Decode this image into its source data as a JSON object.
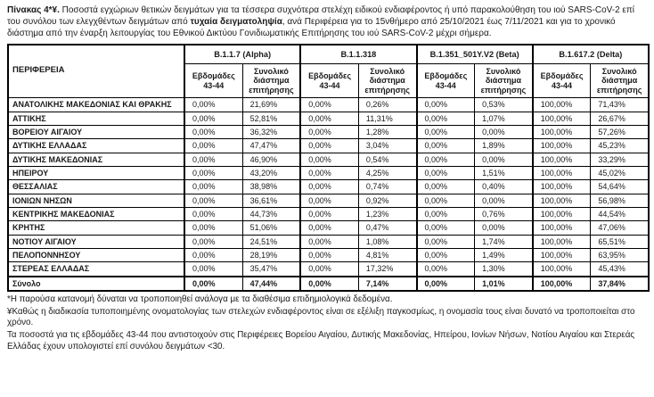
{
  "title": {
    "prefix": "Πίνακας 4*¥.",
    "text1": " Ποσοστά εγχώριων θετικών δειγμάτων για τα τέσσερα συχνότερα στελέχη ειδικού ενδιαφέροντος ή υπό παρακολούθηση του ιού SARS-CoV-2 επί του συνόλου των ελεγχθέντων δειγμάτων από ",
    "bold_phrase": "τυχαία δειγματοληψία",
    "text2": ", ανά Περιφέρεια για το 15νθήμερο από 25/10/2021 έως 7/11/2021 και για το χρονικό διάστημα από την έναρξη λειτουργίας του Εθνικού Δικτύου Γονιδιωματικής Επιτήρησης του ιού SARS-CoV-2 μέχρι σήμερα."
  },
  "table": {
    "region_header": "ΠΕΡΙΦΕΡΕΙΑ",
    "variant_groups": [
      "B.1.1.7 (Alpha)",
      "B.1.1.318",
      "B.1.351_501Y.V2 (Beta)",
      "B.1.617.2 (Delta)"
    ],
    "subheaders": [
      "Εβδομάδες 43-44",
      "Συνολικό διάστημα επιτήρησης"
    ],
    "rows": [
      {
        "region": "ΑΝΑΤΟΛΙΚΗΣ ΜΑΚΕΔΟΝΙΑΣ ΚΑΙ ΘΡΑΚΗΣ",
        "values": [
          "0,00%",
          "21,69%",
          "0,00%",
          "0,26%",
          "0,00%",
          "0,53%",
          "100,00%",
          "71,43%"
        ]
      },
      {
        "region": "ΑΤΤΙΚΗΣ",
        "values": [
          "0,00%",
          "52,81%",
          "0,00%",
          "11,31%",
          "0,00%",
          "1,07%",
          "100,00%",
          "26,67%"
        ]
      },
      {
        "region": "ΒΟΡΕΙΟΥ ΑΙΓΑΙΟΥ",
        "values": [
          "0,00%",
          "36,32%",
          "0,00%",
          "1,28%",
          "0,00%",
          "0,00%",
          "100,00%",
          "57,26%"
        ]
      },
      {
        "region": "ΔΥΤΙΚΗΣ ΕΛΛΑΔΑΣ",
        "values": [
          "0,00%",
          "47,47%",
          "0,00%",
          "3,04%",
          "0,00%",
          "1,89%",
          "100,00%",
          "45,23%"
        ]
      },
      {
        "region": "ΔΥΤΙΚΗΣ ΜΑΚΕΔΟΝΙΑΣ",
        "values": [
          "0,00%",
          "46,90%",
          "0,00%",
          "0,54%",
          "0,00%",
          "0,00%",
          "100,00%",
          "33,29%"
        ]
      },
      {
        "region": "ΗΠΕΙΡΟΥ",
        "values": [
          "0,00%",
          "43,20%",
          "0,00%",
          "4,25%",
          "0,00%",
          "1,51%",
          "100,00%",
          "45,02%"
        ]
      },
      {
        "region": "ΘΕΣΣΑΛΙΑΣ",
        "values": [
          "0,00%",
          "38,98%",
          "0,00%",
          "0,74%",
          "0,00%",
          "0,40%",
          "100,00%",
          "54,64%"
        ]
      },
      {
        "region": "ΙΟΝΙΩΝ ΝΗΣΩΝ",
        "values": [
          "0,00%",
          "36,61%",
          "0,00%",
          "0,92%",
          "0,00%",
          "0,00%",
          "100,00%",
          "56,98%"
        ]
      },
      {
        "region": "ΚΕΝΤΡΙΚΗΣ ΜΑΚΕΔΟΝΙΑΣ",
        "values": [
          "0,00%",
          "44,73%",
          "0,00%",
          "1,23%",
          "0,00%",
          "0,76%",
          "100,00%",
          "44,54%"
        ]
      },
      {
        "region": "ΚΡΗΤΗΣ",
        "values": [
          "0,00%",
          "51,06%",
          "0,00%",
          "0,47%",
          "0,00%",
          "0,00%",
          "100,00%",
          "47,06%"
        ]
      },
      {
        "region": "ΝΟΤΙΟΥ ΑΙΓΑΙΟΥ",
        "values": [
          "0,00%",
          "24,51%",
          "0,00%",
          "1,08%",
          "0,00%",
          "1,74%",
          "100,00%",
          "65,51%"
        ]
      },
      {
        "region": "ΠΕΛΟΠΟΝΝΗΣΟΥ",
        "values": [
          "0,00%",
          "28,19%",
          "0,00%",
          "4,81%",
          "0,00%",
          "1,49%",
          "100,00%",
          "63,95%"
        ]
      },
      {
        "region": "ΣΤΕΡΕΑΣ ΕΛΛΑΔΑΣ",
        "values": [
          "0,00%",
          "35,47%",
          "0,00%",
          "17,32%",
          "0,00%",
          "1,30%",
          "100,00%",
          "45,43%"
        ]
      }
    ],
    "total_row": {
      "region": "Σύνολο",
      "values": [
        "0,00%",
        "47,44%",
        "0,00%",
        "7,14%",
        "0,00%",
        "1,01%",
        "100,00%",
        "37,84%"
      ]
    }
  },
  "footnotes": [
    "*Η παρούσα κατανομή δύναται να τροποποιηθεί ανάλογα με τα διαθέσιμα επιδημιολογικά δεδομένα.",
    "¥Καθώς η διαδικασία τυποποιημένης ονοματολογίας των στελεχών ενδιαφέροντος είναι σε εξέλιξη παγκοσμίως, η ονομασία τους είναι δυνατό να τροποποιείται στο χρόνο.",
    "Τα ποσοστά για τις εβδομάδες 43-44 που αντιστοιχούν στις Περιφέρειες Βορείου Αιγαίου, Δυτικής Μακεδονίας, Ηπείρου, Ιονίων Νήσων, Νοτίου Αιγαίου και Στερεάς Ελλάδας έχουν υπολογιστεί επί συνόλου δειγμάτων <30."
  ]
}
